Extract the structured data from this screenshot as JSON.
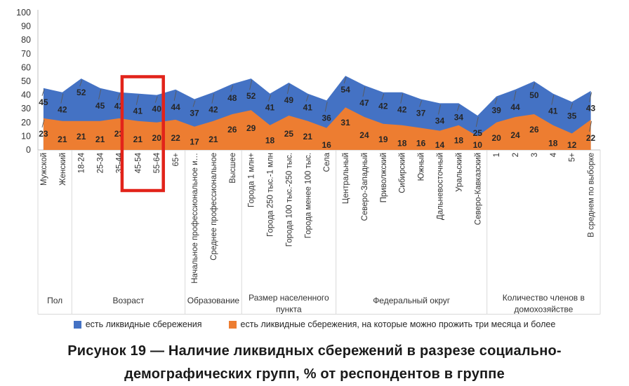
{
  "figure": {
    "caption_line1": "Рисунок 19 — Наличие ликвидных сбережений в разрезе социально-",
    "caption_line2": "демографических групп, % от респондентов в группе"
  },
  "legend": [
    {
      "label": "есть ликвидные сбережения",
      "color": "#4472c4"
    },
    {
      "label": "есть ликвидные сбережения, на которые можно прожить три месяца и более",
      "color": "#ed7d31"
    }
  ],
  "chart_data": {
    "type": "area",
    "title": "",
    "ylabel": "",
    "xlabel": "",
    "ylim": [
      0,
      100
    ],
    "yticks": [
      0,
      10,
      20,
      30,
      40,
      50,
      60,
      70,
      80,
      90,
      100
    ],
    "grid": false,
    "legend_position": "bottom",
    "categories": [
      "Мужской",
      "Женский",
      "18-24",
      "25-34",
      "35-44",
      "45-54",
      "55-64",
      "65+",
      "Начальное профессиональное и…",
      "Среднее профессиональное",
      "Высшее",
      "Города 1 млн+",
      "Города 250 тыс.-1 млн",
      "Города 100 тыс.-250 тыс.",
      "Города менее 100 тыс.",
      "Села",
      "Центральный",
      "Северо-Западный",
      "Приволжский",
      "Сибирский",
      "Южный",
      "Дальневосточный",
      "Уральский",
      "Северо-Кавказский",
      "1",
      "2",
      "3",
      "4",
      "5+",
      "В среднем по выборке"
    ],
    "groups": [
      {
        "label": "Пол",
        "start": 0,
        "end": 1
      },
      {
        "label": "Возраст",
        "start": 2,
        "end": 7
      },
      {
        "label": "Образование",
        "start": 8,
        "end": 10
      },
      {
        "label": "Размер населенного пункта",
        "start": 11,
        "end": 15
      },
      {
        "label": "Федеральный округ",
        "start": 16,
        "end": 23
      },
      {
        "label": "Количество членов в домохозяйстве",
        "start": 24,
        "end": 29
      }
    ],
    "series": [
      {
        "name": "есть ликвидные сбережения",
        "color": "#4472c4",
        "values": [
          45,
          42,
          52,
          45,
          42,
          41,
          40,
          44,
          37,
          42,
          48,
          52,
          41,
          49,
          41,
          36,
          54,
          47,
          42,
          42,
          37,
          34,
          34,
          25,
          39,
          44,
          50,
          41,
          35,
          43
        ]
      },
      {
        "name": "есть ликвидные сбережения, на которые можно прожить три месяца и более",
        "color": "#ed7d31",
        "values": [
          23,
          21,
          21,
          21,
          23,
          21,
          20,
          22,
          17,
          21,
          26,
          29,
          18,
          25,
          21,
          16,
          31,
          24,
          19,
          18,
          16,
          14,
          18,
          10,
          20,
          24,
          26,
          18,
          12,
          22
        ]
      }
    ],
    "highlight": {
      "categories": [
        "45-54",
        "55-64"
      ],
      "color": "#e2231a"
    }
  }
}
